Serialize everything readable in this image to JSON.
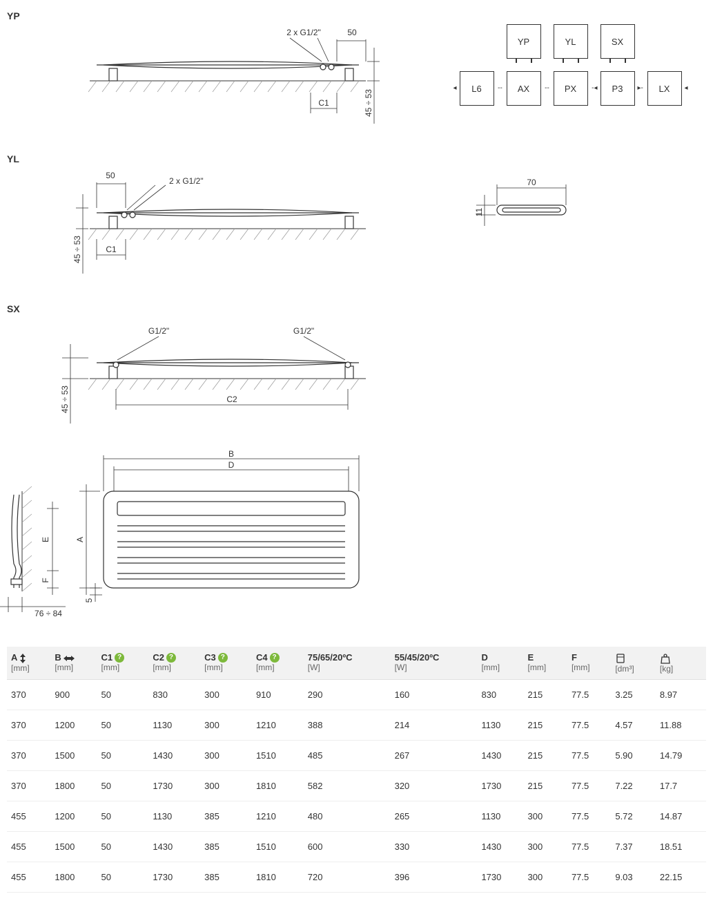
{
  "colors": {
    "line": "#333333",
    "hatch": "#999999",
    "bg": "#ffffff",
    "table_header_bg": "#f2f2f2",
    "table_border": "#e0e0e0",
    "help_badge": "#7db93b"
  },
  "diagrams": {
    "yp": {
      "label": "YP",
      "conn_label": "2 x G1/2\"",
      "dim_50": "50",
      "dim_c1": "C1",
      "dim_height": "45 ÷ 53"
    },
    "yl": {
      "label": "YL",
      "conn_label": "2 x G1/2\"",
      "dim_50": "50",
      "dim_c1": "C1",
      "dim_height": "45 ÷ 53"
    },
    "sx": {
      "label": "SX",
      "conn_left": "G1/2\"",
      "conn_right": "G1/2\"",
      "dim_c2": "C2",
      "dim_height": "45 ÷ 53"
    },
    "front": {
      "dim_B": "B",
      "dim_D": "D",
      "dim_A": "A",
      "dim_E": "E",
      "dim_F": "F",
      "dim_5": "5",
      "dim_depth": "76 ÷ 84"
    },
    "cross_section": {
      "dim_70": "70",
      "dim_11": "11"
    }
  },
  "config_boxes": {
    "row1": [
      "YP",
      "YL",
      "SX"
    ],
    "row2": [
      "L6",
      "AX",
      "PX",
      "P3",
      "LX"
    ]
  },
  "table": {
    "columns": [
      {
        "top": "A",
        "icon": "updown",
        "sub": "[mm]",
        "help": false
      },
      {
        "top": "B",
        "icon": "leftright",
        "sub": "[mm]",
        "help": false
      },
      {
        "top": "C1",
        "icon": null,
        "sub": "[mm]",
        "help": true
      },
      {
        "top": "C2",
        "icon": null,
        "sub": "[mm]",
        "help": true
      },
      {
        "top": "C3",
        "icon": null,
        "sub": "[mm]",
        "help": true
      },
      {
        "top": "C4",
        "icon": null,
        "sub": "[mm]",
        "help": true
      },
      {
        "top": "75/65/20ºC",
        "icon": null,
        "sub": "[W]",
        "help": false
      },
      {
        "top": "55/45/20ºC",
        "icon": null,
        "sub": "[W]",
        "help": false
      },
      {
        "top": "D",
        "icon": null,
        "sub": "[mm]",
        "help": false
      },
      {
        "top": "E",
        "icon": null,
        "sub": "[mm]",
        "help": false
      },
      {
        "top": "F",
        "icon": null,
        "sub": "[mm]",
        "help": false
      },
      {
        "top": "",
        "icon": "volume",
        "sub": "[dm³]",
        "help": false
      },
      {
        "top": "",
        "icon": "weight",
        "sub": "[kg]",
        "help": false
      }
    ],
    "rows": [
      [
        "370",
        "900",
        "50",
        "830",
        "300",
        "910",
        "290",
        "160",
        "830",
        "215",
        "77.5",
        "3.25",
        "8.97"
      ],
      [
        "370",
        "1200",
        "50",
        "1130",
        "300",
        "1210",
        "388",
        "214",
        "1130",
        "215",
        "77.5",
        "4.57",
        "11.88"
      ],
      [
        "370",
        "1500",
        "50",
        "1430",
        "300",
        "1510",
        "485",
        "267",
        "1430",
        "215",
        "77.5",
        "5.90",
        "14.79"
      ],
      [
        "370",
        "1800",
        "50",
        "1730",
        "300",
        "1810",
        "582",
        "320",
        "1730",
        "215",
        "77.5",
        "7.22",
        "17.7"
      ],
      [
        "455",
        "1200",
        "50",
        "1130",
        "385",
        "1210",
        "480",
        "265",
        "1130",
        "300",
        "77.5",
        "5.72",
        "14.87"
      ],
      [
        "455",
        "1500",
        "50",
        "1430",
        "385",
        "1510",
        "600",
        "330",
        "1430",
        "300",
        "77.5",
        "7.37",
        "18.51"
      ],
      [
        "455",
        "1800",
        "50",
        "1730",
        "385",
        "1810",
        "720",
        "396",
        "1730",
        "300",
        "77.5",
        "9.03",
        "22.15"
      ]
    ]
  }
}
